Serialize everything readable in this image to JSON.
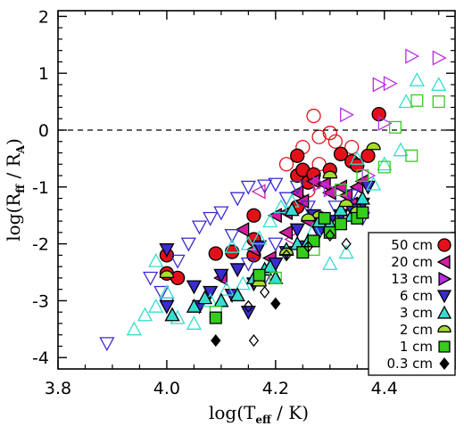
{
  "chart_data": {
    "type": "scatter",
    "title": "",
    "xlabel": {
      "main": "log(T",
      "sub": "eff",
      "tail": " / K)"
    },
    "ylabel": {
      "main": "log(R",
      "sub": "ff",
      "mid": " / R",
      "sub2": "A",
      "tail": ")"
    },
    "xlim": [
      3.8,
      4.53
    ],
    "ylim": [
      -4.2,
      2.1
    ],
    "xticks": [
      3.8,
      4.0,
      4.2,
      4.4
    ],
    "xtick_labels": [
      "3.8",
      "4.0",
      "4.2",
      "4.4"
    ],
    "yticks": [
      -4,
      -3,
      -2,
      -1,
      0,
      1,
      2
    ],
    "ytick_labels": [
      "-4",
      "-3",
      "-2",
      "-1",
      "0",
      "1",
      "2"
    ],
    "reference_line": {
      "y": 0,
      "style": "dashed"
    },
    "legend_position": "bottom-right",
    "series": [
      {
        "name": "50 cm",
        "marker": "circle",
        "color": "#e3101a",
        "filled": [
          [
            4.0,
            -2.2
          ],
          [
            4.0,
            -2.52
          ],
          [
            4.02,
            -2.6
          ],
          [
            4.09,
            -2.17
          ],
          [
            4.12,
            -2.14
          ],
          [
            4.16,
            -1.5
          ],
          [
            4.16,
            -1.92
          ],
          [
            4.16,
            -2.2
          ],
          [
            4.24,
            -0.45
          ],
          [
            4.24,
            -0.8
          ],
          [
            4.24,
            -1.35
          ],
          [
            4.25,
            -0.7
          ],
          [
            4.26,
            -0.92
          ],
          [
            4.27,
            -0.78
          ],
          [
            4.3,
            -0.7
          ],
          [
            4.32,
            -0.42
          ],
          [
            4.34,
            -0.55
          ],
          [
            4.35,
            -0.62
          ],
          [
            4.37,
            -0.45
          ],
          [
            4.39,
            0.28
          ]
        ],
        "open": [
          [
            4.25,
            -0.3
          ],
          [
            4.27,
            0.25
          ],
          [
            4.28,
            -0.12
          ],
          [
            4.3,
            -0.05
          ],
          [
            4.31,
            -0.2
          ],
          [
            4.34,
            -0.3
          ],
          [
            4.22,
            -0.6
          ],
          [
            4.26,
            -1.06
          ],
          [
            4.28,
            -0.6
          ]
        ]
      },
      {
        "name": "20 cm",
        "marker": "triangle-left",
        "color": "#d31ca0",
        "filled": [
          [
            4.1,
            -2.6
          ],
          [
            4.14,
            -1.75
          ],
          [
            4.16,
            -2.1
          ],
          [
            4.2,
            -1.5
          ],
          [
            4.22,
            -1.8
          ],
          [
            4.24,
            -1.1
          ],
          [
            4.25,
            -1.25
          ],
          [
            4.27,
            -0.9
          ],
          [
            4.29,
            -0.95
          ],
          [
            4.3,
            -1.1
          ],
          [
            4.32,
            -1.0
          ],
          [
            4.33,
            -1.15
          ],
          [
            4.34,
            -1.3
          ],
          [
            4.35,
            -1.0
          ],
          [
            4.36,
            -0.9
          ],
          [
            4.26,
            -1.6
          ],
          [
            4.19,
            -2.25
          ],
          [
            4.22,
            -1.45
          ]
        ],
        "open": [
          [
            4.17,
            -1.08
          ],
          [
            4.23,
            -1.92
          ],
          [
            4.28,
            -1.7
          ],
          [
            4.33,
            -1.45
          ]
        ]
      },
      {
        "name": "13 cm",
        "marker": "triangle-right",
        "color": "#b82ee0",
        "filled": [],
        "open": [
          [
            4.4,
            0.12
          ],
          [
            4.33,
            0.27
          ],
          [
            4.39,
            0.8
          ],
          [
            4.41,
            0.82
          ],
          [
            4.45,
            1.3
          ],
          [
            4.5,
            1.27
          ],
          [
            4.28,
            -0.95
          ],
          [
            4.3,
            -1.05
          ],
          [
            4.37,
            -0.8
          ]
        ]
      },
      {
        "name": "6 cm",
        "marker": "triangle-down",
        "color": "#3a2ccf",
        "filled": [
          [
            4.0,
            -2.1
          ],
          [
            4.0,
            -3.1
          ],
          [
            4.05,
            -2.75
          ],
          [
            4.08,
            -2.85
          ],
          [
            4.1,
            -2.55
          ],
          [
            4.13,
            -2.45
          ],
          [
            4.15,
            -3.2
          ],
          [
            4.16,
            -2.7
          ],
          [
            4.17,
            -2.05
          ],
          [
            4.2,
            -2.35
          ],
          [
            4.22,
            -2.15
          ],
          [
            4.25,
            -2.05
          ],
          [
            4.28,
            -1.8
          ],
          [
            4.3,
            -1.6
          ],
          [
            4.32,
            -1.5
          ],
          [
            4.34,
            -1.4
          ],
          [
            4.36,
            -1.3
          ],
          [
            4.37,
            -1.0
          ],
          [
            4.24,
            -1.75
          ],
          [
            4.27,
            -1.5
          ],
          [
            4.12,
            -2.9
          ],
          [
            4.06,
            -3.1
          ]
        ],
        "open": [
          [
            3.89,
            -3.75
          ],
          [
            3.97,
            -2.6
          ],
          [
            3.99,
            -2.85
          ],
          [
            4.0,
            -3.05
          ],
          [
            4.02,
            -2.3
          ],
          [
            4.04,
            -2.0
          ],
          [
            4.06,
            -1.7
          ],
          [
            4.08,
            -1.55
          ],
          [
            4.1,
            -1.45
          ],
          [
            4.12,
            -1.85
          ],
          [
            4.13,
            -1.2
          ],
          [
            4.15,
            -1.0
          ],
          [
            4.18,
            -0.98
          ],
          [
            4.2,
            -0.95
          ],
          [
            4.22,
            -1.2
          ],
          [
            4.24,
            -1.0
          ],
          [
            4.26,
            -1.35
          ],
          [
            4.29,
            -1.7
          ],
          [
            4.31,
            -1.35
          ],
          [
            4.34,
            -1.15
          ],
          [
            4.36,
            -1.55
          ],
          [
            4.15,
            -2.35
          ],
          [
            4.18,
            -2.6
          ],
          [
            4.2,
            -2.0
          ]
        ]
      },
      {
        "name": "3 cm",
        "marker": "triangle-up",
        "color": "#35ddd1",
        "filled": [
          [
            4.01,
            -3.25
          ],
          [
            4.05,
            -3.1
          ],
          [
            4.07,
            -2.95
          ],
          [
            4.1,
            -3.0
          ],
          [
            4.13,
            -2.9
          ],
          [
            4.16,
            -2.6
          ],
          [
            4.18,
            -2.45
          ],
          [
            4.2,
            -2.6
          ],
          [
            4.22,
            -2.1
          ],
          [
            4.24,
            -2.0
          ],
          [
            4.26,
            -1.95
          ],
          [
            4.28,
            -1.6
          ],
          [
            4.3,
            -1.65
          ],
          [
            4.32,
            -1.4
          ],
          [
            4.34,
            -1.5
          ],
          [
            4.36,
            -1.2
          ],
          [
            4.23,
            -1.4
          ],
          [
            4.19,
            -2.4
          ]
        ],
        "open": [
          [
            3.94,
            -3.5
          ],
          [
            3.96,
            -3.25
          ],
          [
            3.98,
            -3.1
          ],
          [
            4.0,
            -2.85
          ],
          [
            4.02,
            -3.3
          ],
          [
            4.05,
            -3.4
          ],
          [
            4.08,
            -3.0
          ],
          [
            4.11,
            -2.8
          ],
          [
            4.14,
            -2.7
          ],
          [
            4.15,
            -2.0
          ],
          [
            4.17,
            -1.9
          ],
          [
            4.19,
            -1.6
          ],
          [
            4.21,
            -1.35
          ],
          [
            4.23,
            -1.25
          ],
          [
            4.27,
            -1.75
          ],
          [
            4.3,
            -2.35
          ],
          [
            4.33,
            -2.15
          ],
          [
            4.38,
            -0.95
          ],
          [
            4.4,
            -0.6
          ],
          [
            4.43,
            -0.35
          ],
          [
            4.44,
            0.5
          ],
          [
            4.46,
            0.88
          ],
          [
            4.5,
            0.8
          ],
          [
            4.35,
            -0.5
          ],
          [
            4.12,
            -2.05
          ],
          [
            3.98,
            -2.3
          ]
        ]
      },
      {
        "name": "2 cm",
        "marker": "semicircle",
        "color": "#a6dd2e",
        "filled": [
          [
            4.0,
            -2.55
          ],
          [
            4.17,
            -2.7
          ],
          [
            4.22,
            -2.15
          ],
          [
            4.28,
            -1.5
          ],
          [
            4.3,
            -0.8
          ],
          [
            4.33,
            -1.3
          ],
          [
            4.35,
            -1.42
          ],
          [
            4.38,
            -0.3
          ],
          [
            4.26,
            -1.55
          ]
        ],
        "open": []
      },
      {
        "name": "1 cm",
        "marker": "square",
        "color": "#35cc1c",
        "filled": [
          [
            4.09,
            -3.3
          ],
          [
            4.17,
            -2.55
          ],
          [
            4.25,
            -2.15
          ],
          [
            4.27,
            -1.95
          ],
          [
            4.3,
            -1.8
          ],
          [
            4.32,
            -1.65
          ],
          [
            4.35,
            -1.55
          ],
          [
            4.36,
            -1.45
          ],
          [
            4.29,
            -1.55
          ]
        ],
        "open": [
          [
            4.09,
            -3.2
          ],
          [
            4.2,
            -2.6
          ],
          [
            4.27,
            -2.1
          ],
          [
            4.32,
            -1.05
          ],
          [
            4.36,
            -0.8
          ],
          [
            4.4,
            -0.65
          ],
          [
            4.42,
            0.05
          ],
          [
            4.45,
            -0.45
          ],
          [
            4.46,
            0.52
          ],
          [
            4.5,
            0.5
          ]
        ]
      },
      {
        "name": "0.3 cm",
        "marker": "diamond",
        "color": "#000000",
        "filled": [
          [
            4.09,
            -3.7
          ],
          [
            4.2,
            -3.05
          ]
        ],
        "open": [
          [
            4.15,
            -3.1
          ],
          [
            4.18,
            -2.85
          ],
          [
            4.16,
            -3.7
          ],
          [
            4.22,
            -2.2
          ],
          [
            4.26,
            -2.05
          ],
          [
            4.3,
            -1.85
          ],
          [
            4.33,
            -2.0
          ],
          [
            4.38,
            -1.9
          ]
        ]
      }
    ]
  }
}
